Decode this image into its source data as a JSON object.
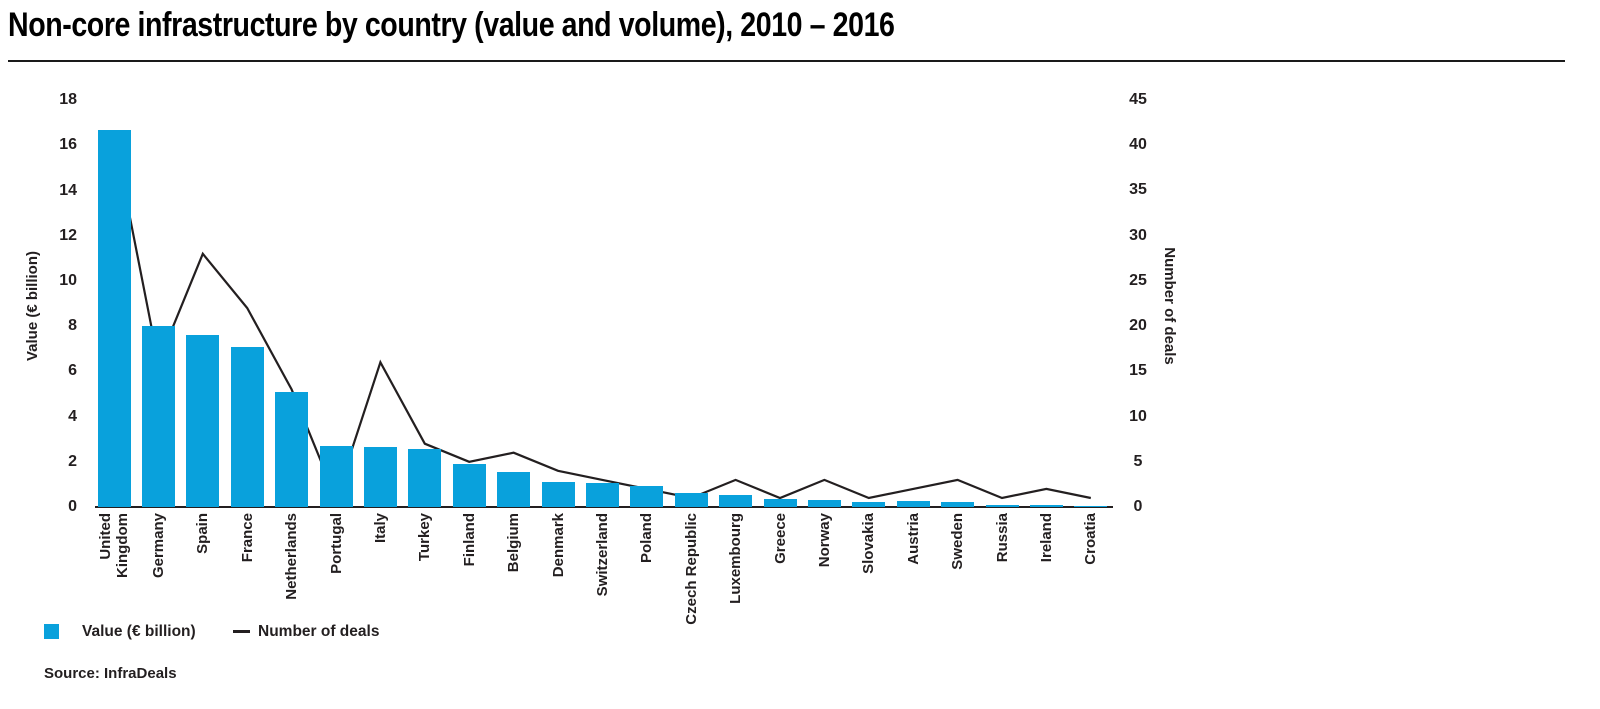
{
  "page": {
    "title": "Non-core infrastructure by country (value and volume), 2010 – 2016",
    "source": "Source: InfraDeals"
  },
  "legend": {
    "value": "Value (€ billion)",
    "deals": "Number of deals"
  },
  "colors": {
    "bar": "#09a1dc",
    "line": "#231f20",
    "text": "#231f20",
    "rule": "#1a1a1a"
  },
  "chart_data": {
    "type": "bar",
    "title": "Non-core infrastructure by country (value and volume), 2010 – 2016",
    "grid": false,
    "legend_position": "bottom-left",
    "categories": [
      "United Kingdom",
      "Germany",
      "Spain",
      "France",
      "Netherlands",
      "Portugal",
      "Italy",
      "Turkey",
      "Finland",
      "Belgium",
      "Denmark",
      "Switzerland",
      "Poland",
      "Czech Republic",
      "Luxembourg",
      "Greece",
      "Norway",
      "Slovakia",
      "Austria",
      "Sweden",
      "Russia",
      "Ireland",
      "Croatia"
    ],
    "x_display_labels": [
      "United\nKingdom",
      "Germany",
      "Spain",
      "France",
      "Netherlands",
      "Portugal",
      "Italy",
      "Turkey",
      "Finland",
      "Belgium",
      "Denmark",
      "Switzerland",
      "Poland",
      "Czech Republic",
      "Luxembourg",
      "Greece",
      "Norway",
      "Slovakia",
      "Austria",
      "Sweden",
      "Russia",
      "Ireland",
      "Croatia"
    ],
    "series": [
      {
        "name": "Value (€ billion)",
        "type": "bar",
        "axis": "left",
        "values": [
          16.7,
          8.0,
          7.6,
          7.1,
          5.1,
          2.7,
          2.65,
          2.55,
          1.9,
          1.55,
          1.1,
          1.05,
          0.95,
          0.6,
          0.55,
          0.35,
          0.3,
          0.2,
          0.25,
          0.2,
          0.1,
          0.07,
          0.04
        ]
      },
      {
        "name": "Number of deals",
        "type": "line",
        "axis": "right",
        "values": [
          41,
          16,
          28,
          22,
          13,
          1,
          16,
          7,
          5,
          6,
          4,
          3,
          2,
          1,
          3,
          1,
          3,
          1,
          2,
          3,
          1,
          2,
          1
        ]
      }
    ],
    "left_axis": {
      "label": "Value (€ billion)",
      "min": 0,
      "max": 18,
      "ticks": [
        0,
        2,
        4,
        6,
        8,
        10,
        12,
        14,
        16,
        18
      ]
    },
    "right_axis": {
      "label": "Number of deals",
      "min": 0,
      "max": 45,
      "ticks": [
        0,
        5,
        10,
        15,
        20,
        25,
        30,
        35,
        40,
        45
      ]
    }
  }
}
